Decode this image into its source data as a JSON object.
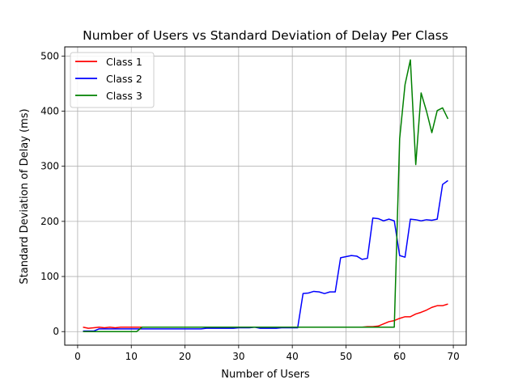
{
  "chart_data": {
    "type": "line",
    "title": "Number of Users vs Standard Deviation of Delay Per Class",
    "xlabel": "Number of Users",
    "ylabel": "Standard Deviation of Delay (ms)",
    "xlim": [
      -2.4,
      72.4
    ],
    "ylim": [
      -24.6,
      516.6
    ],
    "xticks": [
      0,
      10,
      20,
      30,
      40,
      50,
      60,
      70
    ],
    "yticks": [
      0,
      100,
      200,
      300,
      400,
      500
    ],
    "grid": true,
    "legend": "top-left",
    "x": [
      1,
      2,
      3,
      4,
      5,
      6,
      7,
      8,
      9,
      10,
      11,
      12,
      13,
      14,
      15,
      16,
      17,
      18,
      19,
      20,
      21,
      22,
      23,
      24,
      25,
      26,
      27,
      28,
      29,
      30,
      31,
      32,
      33,
      34,
      35,
      36,
      37,
      38,
      39,
      40,
      41,
      42,
      43,
      44,
      45,
      46,
      47,
      48,
      49,
      50,
      51,
      52,
      53,
      54,
      55,
      56,
      57,
      58,
      59,
      60,
      61,
      62,
      63,
      64,
      65,
      66,
      67,
      68,
      69
    ],
    "series": [
      {
        "name": "Class 1",
        "color": "#ff0000",
        "values": [
          8,
          6,
          7,
          8,
          7,
          8,
          7,
          8,
          8,
          8,
          8,
          8,
          8,
          8,
          8,
          8,
          8,
          8,
          8,
          8,
          8,
          8,
          8,
          8,
          8,
          8,
          8,
          8,
          8,
          8,
          8,
          8,
          8,
          8,
          8,
          8,
          8,
          8,
          8,
          8,
          8,
          8,
          8,
          8,
          8,
          8,
          8,
          8,
          8,
          8,
          8,
          8,
          8,
          9,
          9,
          10,
          14,
          18,
          20,
          24,
          27,
          27,
          32,
          35,
          39,
          44,
          47,
          47,
          50
        ]
      },
      {
        "name": "Class 2",
        "color": "#0000ff",
        "values": [
          1,
          1,
          1,
          5,
          5,
          5,
          5,
          5,
          5,
          5,
          5,
          5,
          5,
          5,
          5,
          5,
          5,
          5,
          5,
          5,
          5,
          5,
          5,
          6,
          6,
          6,
          6,
          6,
          6,
          7,
          7,
          7,
          8,
          6,
          6,
          6,
          6,
          7,
          7,
          7,
          7,
          69,
          70,
          73,
          72,
          69,
          72,
          72,
          134,
          136,
          138,
          137,
          131,
          133,
          206,
          205,
          201,
          204,
          201,
          138,
          135,
          204,
          203,
          201,
          203,
          202,
          204,
          267,
          274
        ]
      },
      {
        "name": "Class 3",
        "color": "#008000",
        "values": [
          0,
          0,
          0,
          0,
          0,
          0,
          0,
          0,
          0,
          0,
          0,
          8,
          8,
          8,
          8,
          8,
          8,
          8,
          8,
          8,
          8,
          8,
          8,
          8,
          8,
          8,
          8,
          8,
          8,
          8,
          8,
          8,
          8,
          8,
          8,
          8,
          8,
          8,
          8,
          8,
          8,
          8,
          8,
          8,
          8,
          8,
          8,
          8,
          8,
          8,
          8,
          8,
          8,
          8,
          8,
          8,
          8,
          8,
          8,
          350,
          448,
          493,
          303,
          433,
          400,
          361,
          401,
          406,
          386
        ]
      }
    ]
  }
}
